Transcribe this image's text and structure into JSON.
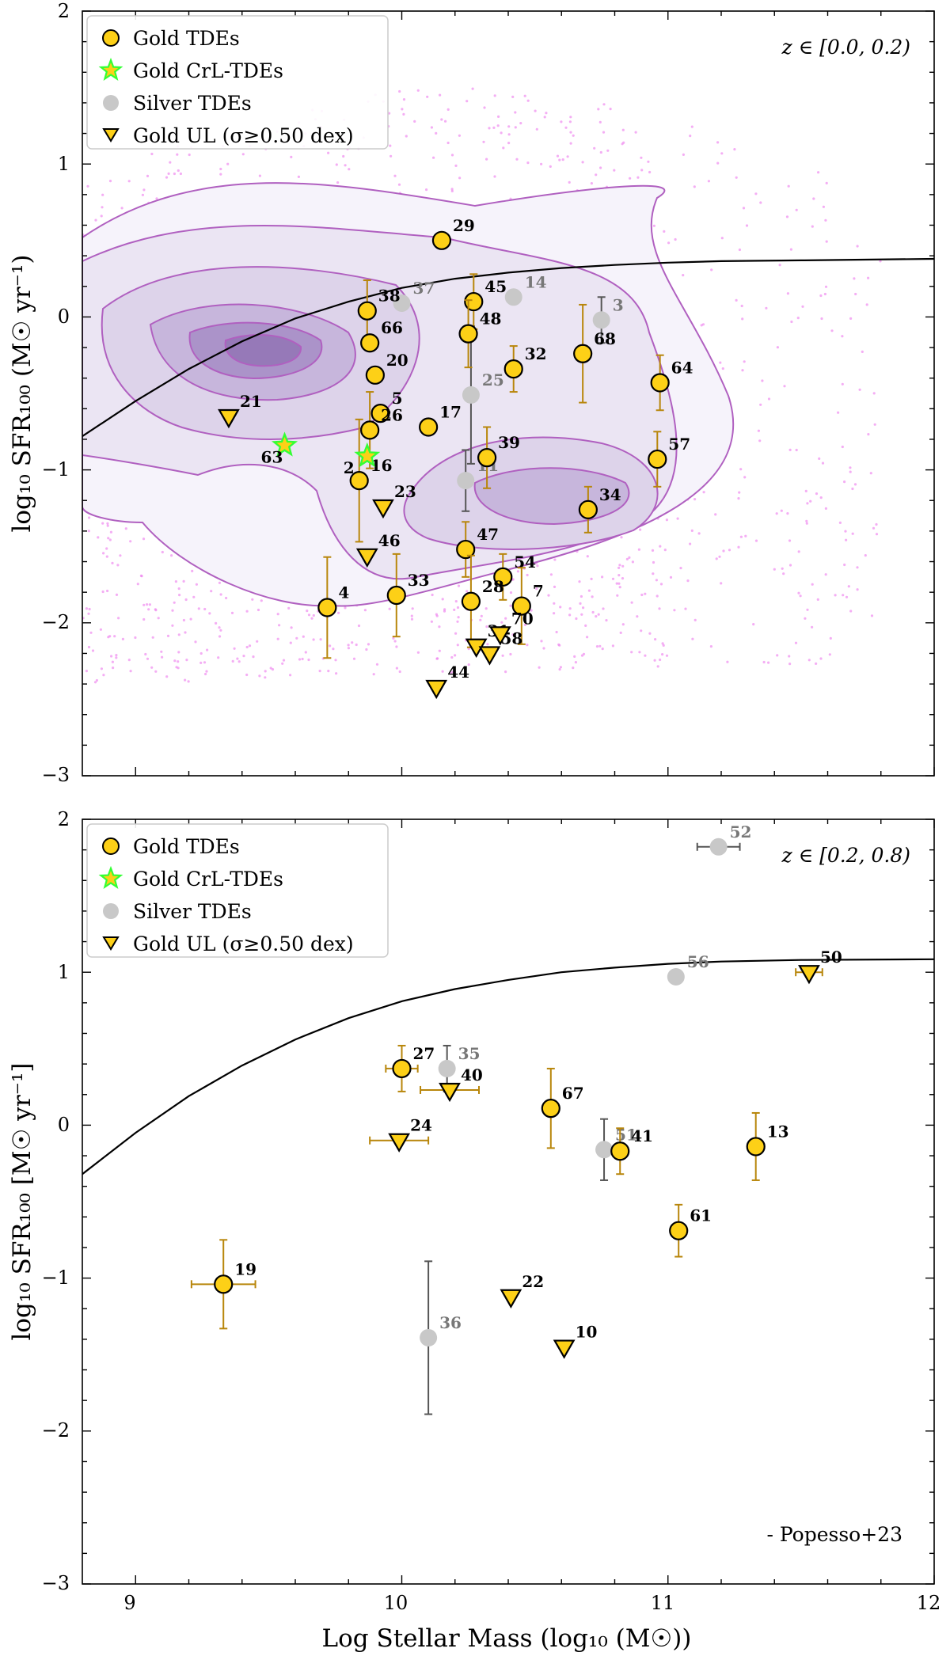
{
  "chart_data": [
    {
      "type": "scatter",
      "panel": "top",
      "annotation": "z ∈ [0.0, 0.2)",
      "xlabel": "",
      "ylabel": "log₁₀ SFR₁₀₀ (M☉ yr⁻¹)",
      "xlim": [
        8.8,
        12
      ],
      "ylim": [
        -3,
        2
      ],
      "yticks": [
        "−3",
        "−2",
        "−1",
        "0",
        "1",
        "2"
      ],
      "legend": {
        "placement": "top-left",
        "entries": [
          "Gold TDEs",
          "Gold CrL-TDEs",
          "Silver TDEs",
          "Gold UL (σ≥0.50 dex)"
        ]
      },
      "main_sequence": [
        [
          8.8,
          -0.78
        ],
        [
          9.0,
          -0.55
        ],
        [
          9.2,
          -0.34
        ],
        [
          9.4,
          -0.16
        ],
        [
          9.6,
          -0.01
        ],
        [
          9.8,
          0.1
        ],
        [
          10.0,
          0.19
        ],
        [
          10.2,
          0.25
        ],
        [
          10.4,
          0.29
        ],
        [
          10.6,
          0.32
        ],
        [
          10.8,
          0.34
        ],
        [
          11.0,
          0.355
        ],
        [
          11.2,
          0.365
        ],
        [
          11.5,
          0.37
        ],
        [
          12.0,
          0.38
        ]
      ],
      "gold": [
        {
          "id": "29",
          "x": 10.15,
          "y": 0.5
        },
        {
          "id": "38",
          "x": 9.87,
          "y": 0.04,
          "yerr": 0.2
        },
        {
          "id": "45",
          "x": 10.27,
          "y": 0.1,
          "yerr": 0.18
        },
        {
          "id": "66",
          "x": 9.88,
          "y": -0.17
        },
        {
          "id": "48",
          "x": 10.25,
          "y": -0.11,
          "yerr": 0.22
        },
        {
          "id": "20",
          "x": 9.9,
          "y": -0.38
        },
        {
          "id": "32",
          "x": 10.42,
          "y": -0.34,
          "yerr": 0.15
        },
        {
          "id": "68",
          "x": 10.68,
          "y": -0.24,
          "yerr": 0.32
        },
        {
          "id": "64",
          "x": 10.97,
          "y": -0.43,
          "yerr": 0.18
        },
        {
          "id": "5",
          "x": 9.92,
          "y": -0.63
        },
        {
          "id": "17",
          "x": 10.1,
          "y": -0.72
        },
        {
          "id": "26",
          "x": 9.88,
          "y": -0.74,
          "yerr": 0.25
        },
        {
          "id": "39",
          "x": 10.32,
          "y": -0.92,
          "yerr": 0.2
        },
        {
          "id": "57",
          "x": 10.96,
          "y": -0.93,
          "yerr": 0.18
        },
        {
          "id": "16",
          "x": 9.84,
          "y": -1.07,
          "yerr": 0.4
        },
        {
          "id": "34",
          "x": 10.7,
          "y": -1.26,
          "yerr": 0.15
        },
        {
          "id": "47",
          "x": 10.24,
          "y": -1.52,
          "yerr": 0.18
        },
        {
          "id": "54",
          "x": 10.38,
          "y": -1.7,
          "yerr": 0.15
        },
        {
          "id": "33",
          "x": 9.98,
          "y": -1.82,
          "yerr": 0.27
        },
        {
          "id": "28",
          "x": 10.26,
          "y": -1.86,
          "yerr": 0.3
        },
        {
          "id": "7",
          "x": 10.45,
          "y": -1.89,
          "yerr": 0.25
        },
        {
          "id": "4",
          "x": 9.72,
          "y": -1.9,
          "yerr": 0.33
        }
      ],
      "crl": [
        {
          "id": "63",
          "x": 9.56,
          "y": -0.84
        },
        {
          "id": "2",
          "x": 9.87,
          "y": -0.91
        }
      ],
      "silver": [
        {
          "id": "37",
          "x": 10.0,
          "y": 0.09
        },
        {
          "id": "14",
          "x": 10.42,
          "y": 0.13
        },
        {
          "id": "3",
          "x": 10.75,
          "y": -0.02,
          "yerr": 0.15
        },
        {
          "id": "25",
          "x": 10.26,
          "y": -0.51,
          "yerr": 0.45
        },
        {
          "id": "11",
          "x": 10.24,
          "y": -1.07,
          "yerr": 0.2
        }
      ],
      "upper_limits": [
        {
          "id": "21",
          "x": 9.35,
          "y": -0.65
        },
        {
          "id": "23",
          "x": 9.93,
          "y": -1.24
        },
        {
          "id": "46",
          "x": 9.87,
          "y": -1.56
        },
        {
          "id": "31",
          "x": 10.28,
          "y": -2.15
        },
        {
          "id": "58",
          "x": 10.33,
          "y": -2.2
        },
        {
          "id": "70",
          "x": 10.37,
          "y": -2.07
        },
        {
          "id": "44",
          "x": 10.13,
          "y": -2.42
        }
      ]
    },
    {
      "type": "scatter",
      "panel": "bottom",
      "annotation": "z ∈ [0.2, 0.8)",
      "note": "- Popesso+23",
      "xlabel": "Log Stellar Mass (log₁₀ (M☉))",
      "ylabel": "log₁₀ SFR₁₀₀ [M☉ yr⁻¹]",
      "xlim": [
        8.8,
        12
      ],
      "ylim": [
        -3,
        2
      ],
      "xticks": [
        "9",
        "10",
        "11",
        "12"
      ],
      "yticks": [
        "−3",
        "−2",
        "−1",
        "0",
        "1",
        "2"
      ],
      "legend": {
        "placement": "top-left",
        "entries": [
          "Gold TDEs",
          "Gold CrL-TDEs",
          "Silver TDEs",
          "Gold UL (σ≥0.50 dex)"
        ]
      },
      "main_sequence": [
        [
          8.8,
          -0.32
        ],
        [
          9.0,
          -0.05
        ],
        [
          9.2,
          0.19
        ],
        [
          9.4,
          0.39
        ],
        [
          9.6,
          0.56
        ],
        [
          9.8,
          0.7
        ],
        [
          10.0,
          0.81
        ],
        [
          10.2,
          0.89
        ],
        [
          10.4,
          0.95
        ],
        [
          10.6,
          1.0
        ],
        [
          10.8,
          1.03
        ],
        [
          11.0,
          1.055
        ],
        [
          11.2,
          1.07
        ],
        [
          11.5,
          1.08
        ],
        [
          12.0,
          1.085
        ]
      ],
      "gold": [
        {
          "id": "27",
          "x": 10.0,
          "y": 0.37,
          "yerr": 0.15,
          "xerr": 0.06
        },
        {
          "id": "67",
          "x": 10.56,
          "y": 0.11,
          "yerr": 0.26
        },
        {
          "id": "41",
          "x": 10.82,
          "y": -0.17,
          "yerr": 0.15
        },
        {
          "id": "13",
          "x": 11.33,
          "y": -0.14,
          "yerr": 0.22
        },
        {
          "id": "61",
          "x": 11.04,
          "y": -0.69,
          "yerr": 0.17
        },
        {
          "id": "19",
          "x": 9.33,
          "y": -1.04,
          "yerr": 0.29,
          "xerr": 0.12
        }
      ],
      "crl": [],
      "silver": [
        {
          "id": "52",
          "x": 11.19,
          "y": 1.82,
          "xerr": 0.08
        },
        {
          "id": "56",
          "x": 11.03,
          "y": 0.97
        },
        {
          "id": "35",
          "x": 10.17,
          "y": 0.37,
          "yerr": 0.15
        },
        {
          "id": "51",
          "x": 10.76,
          "y": -0.16,
          "yerr": 0.2
        },
        {
          "id": "36",
          "x": 10.1,
          "y": -1.39,
          "yerr": 0.5
        }
      ],
      "upper_limits": [
        {
          "id": "50",
          "x": 11.53,
          "y": 1.0,
          "xerr": 0.05
        },
        {
          "id": "40",
          "x": 10.18,
          "y": 0.23,
          "xerr": 0.11
        },
        {
          "id": "24",
          "x": 9.99,
          "y": -0.1,
          "xerr": 0.11
        },
        {
          "id": "22",
          "x": 10.41,
          "y": -1.12
        },
        {
          "id": "10",
          "x": 10.61,
          "y": -1.45
        }
      ]
    }
  ],
  "colors": {
    "gold_fill": "#FDD017",
    "gold_edge": "#000000",
    "gold_err": "#B8860B",
    "crl_fill": "#FDD017",
    "crl_edge": "#33FF33",
    "silver_fill": "#C8C8C8",
    "silver_err": "#555555",
    "silver_label": "#777777",
    "scatter_pink": "#EE82EE",
    "contour_line": "#B060C0",
    "contour_fill": "#6A3D9A"
  }
}
